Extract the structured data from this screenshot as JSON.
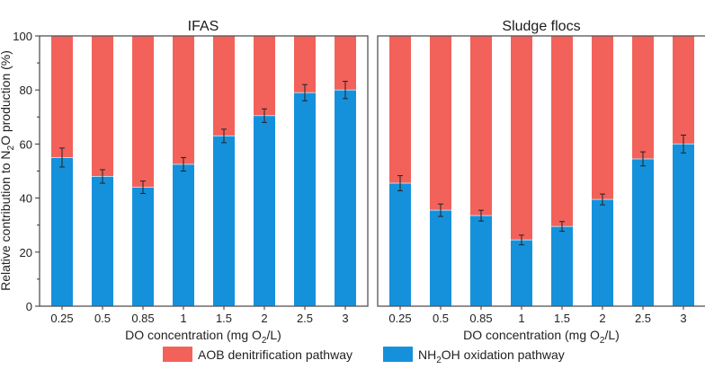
{
  "legend": {
    "items": [
      {
        "label": "AOB denitrification pathway",
        "color": "#f2625a"
      },
      {
        "label_parts": [
          "NH",
          "2",
          "OH oxidation pathway"
        ],
        "label": "NH2OH oxidation pathway",
        "color": "#1591db"
      }
    ]
  },
  "chart_data": [
    {
      "type": "bar",
      "stacked": true,
      "title": "IFAS",
      "xlabel": "DO concentration (mg O2/L)",
      "xlabel_parts": [
        "DO concentration (mg O",
        "2",
        "/L)"
      ],
      "ylabel": "Relative contribution to N2O production (%)",
      "ylabel_parts": [
        "Relative contribution to N",
        "2",
        "O production (%)"
      ],
      "ylim": [
        0,
        100
      ],
      "yticks": [
        0,
        20,
        40,
        60,
        80,
        100
      ],
      "grid": false,
      "categories": [
        "0.25",
        "0.5",
        "0.85",
        "1",
        "1.5",
        "2",
        "2.5",
        "3"
      ],
      "series": [
        {
          "name": "NH2OH oxidation pathway",
          "color": "#1591db",
          "values": [
            55,
            48,
            44,
            52.5,
            63,
            70.5,
            79,
            80
          ],
          "error": [
            3.5,
            2.5,
            2.3,
            2.5,
            2.5,
            2.5,
            3.0,
            3.2
          ]
        },
        {
          "name": "AOB denitrification pathway",
          "color": "#f2625a",
          "values": [
            45,
            52,
            56,
            47.5,
            37,
            29.5,
            21,
            20
          ]
        }
      ]
    },
    {
      "type": "bar",
      "stacked": true,
      "title": "Sludge flocs",
      "xlabel": "DO concentration (mg O2/L)",
      "xlabel_parts": [
        "DO concentration (mg O",
        "2",
        "/L)"
      ],
      "ylim": [
        0,
        100
      ],
      "grid": false,
      "categories": [
        "0.25",
        "0.5",
        "0.85",
        "1",
        "1.5",
        "2",
        "2.5",
        "3"
      ],
      "series": [
        {
          "name": "NH2OH oxidation pathway",
          "color": "#1591db",
          "values": [
            45.5,
            35.5,
            33.5,
            24.5,
            29.5,
            39.5,
            54.5,
            60
          ],
          "error": [
            2.8,
            2.3,
            2.0,
            1.8,
            1.8,
            2.0,
            2.6,
            3.3
          ]
        },
        {
          "name": "AOB denitrification pathway",
          "color": "#f2625a",
          "values": [
            54.5,
            64.5,
            66.5,
            75.5,
            70.5,
            60.5,
            45.5,
            40
          ]
        }
      ]
    }
  ]
}
